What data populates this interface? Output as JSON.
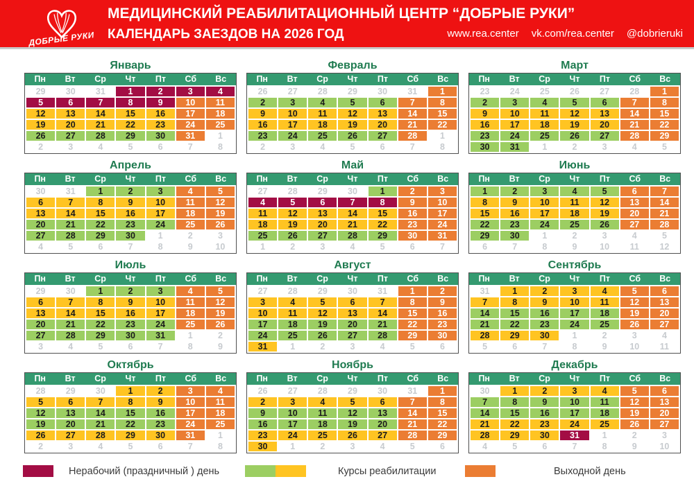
{
  "header": {
    "logo_text": "ДОБРЫЕ РУКИ",
    "title_line1": "МЕДИЦИНСКИЙ РЕАБИЛИТАЦИОННЫЙ ЦЕНТР “ДОБРЫЕ РУКИ”",
    "title_line2": "КАЛЕНДАРЬ ЗАЕЗДОВ НА 2026 ГОД",
    "links": [
      "www.rea.center",
      "vk.com/rea.center",
      "@dobrieruki"
    ]
  },
  "weekdays": [
    "Пн",
    "Вт",
    "Ср",
    "Чт",
    "Пт",
    "Сб",
    "Вс"
  ],
  "colors": {
    "banner_red": "#EE1212",
    "header_green": "#349A70",
    "title_green": "#1F7B50",
    "course_green": "#9CCE62",
    "course_yellow": "#FFC422",
    "weekend_orange": "#EB7D33",
    "holiday_red": "#A30D44",
    "out_text": "#C7CBCF"
  },
  "cell_types": {
    "x": "adjacent-month-day",
    "g": "rehab-course-green",
    "y": "rehab-course-yellow",
    "o": "weekend-day",
    "h": "holiday-nonworking-day"
  },
  "months": [
    {
      "id": "january",
      "name": "Январь",
      "weeks": [
        [
          "29:x",
          "30:x",
          "31:x",
          "1:h",
          "2:h",
          "3:h",
          "4:h"
        ],
        [
          "5:h",
          "6:h",
          "7:h",
          "8:h",
          "9:h",
          "10:o",
          "11:o"
        ],
        [
          "12:y",
          "13:y",
          "14:y",
          "15:y",
          "16:y",
          "17:o",
          "18:o"
        ],
        [
          "19:y",
          "20:y",
          "21:y",
          "22:y",
          "23:y",
          "24:o",
          "25:o"
        ],
        [
          "26:g",
          "27:g",
          "28:g",
          "29:g",
          "30:g",
          "31:o",
          "1:x"
        ],
        [
          "2:x",
          "3:x",
          "4:x",
          "5:x",
          "6:x",
          "7:x",
          "8:x"
        ]
      ]
    },
    {
      "id": "february",
      "name": "Февраль",
      "weeks": [
        [
          "26:x",
          "27:x",
          "28:x",
          "29:x",
          "30:x",
          "31:x",
          "1:o"
        ],
        [
          "2:g",
          "3:g",
          "4:g",
          "5:g",
          "6:g",
          "7:o",
          "8:o"
        ],
        [
          "9:y",
          "10:y",
          "11:y",
          "12:y",
          "13:y",
          "14:o",
          "15:o"
        ],
        [
          "16:y",
          "17:y",
          "18:y",
          "19:y",
          "20:y",
          "21:o",
          "22:o"
        ],
        [
          "23:g",
          "24:g",
          "25:g",
          "26:g",
          "27:g",
          "28:o",
          "1:x"
        ],
        [
          "2:x",
          "3:x",
          "4:x",
          "5:x",
          "6:x",
          "7:x",
          "8:x"
        ]
      ]
    },
    {
      "id": "march",
      "name": "Март",
      "weeks": [
        [
          "23:x",
          "24:x",
          "25:x",
          "26:x",
          "27:x",
          "28:x",
          "1:o"
        ],
        [
          "2:g",
          "3:g",
          "4:g",
          "5:g",
          "6:g",
          "7:o",
          "8:o"
        ],
        [
          "9:y",
          "10:y",
          "11:y",
          "12:y",
          "13:y",
          "14:o",
          "15:o"
        ],
        [
          "16:y",
          "17:y",
          "18:y",
          "19:y",
          "20:y",
          "21:o",
          "22:o"
        ],
        [
          "23:g",
          "24:g",
          "25:g",
          "26:g",
          "27:g",
          "28:o",
          "29:o"
        ],
        [
          "30:g",
          "31:g",
          "1:x",
          "2:x",
          "3:x",
          "4:x",
          "5:x"
        ]
      ]
    },
    {
      "id": "april",
      "name": "Апрель",
      "weeks": [
        [
          "30:x",
          "31:x",
          "1:g",
          "2:g",
          "3:g",
          "4:o",
          "5:o"
        ],
        [
          "6:y",
          "7:y",
          "8:y",
          "9:y",
          "10:y",
          "11:o",
          "12:o"
        ],
        [
          "13:y",
          "14:y",
          "15:y",
          "16:y",
          "17:y",
          "18:o",
          "19:o"
        ],
        [
          "20:g",
          "21:g",
          "22:g",
          "23:g",
          "24:g",
          "25:o",
          "26:o"
        ],
        [
          "27:g",
          "28:g",
          "29:g",
          "30:g",
          "1:x",
          "2:x",
          "3:x"
        ],
        [
          "4:x",
          "5:x",
          "6:x",
          "7:x",
          "8:x",
          "9:x",
          "10:x"
        ]
      ]
    },
    {
      "id": "may",
      "name": "Май",
      "weeks": [
        [
          "27:x",
          "28:x",
          "29:x",
          "30:x",
          "1:g",
          "2:o",
          "3:o"
        ],
        [
          "4:h",
          "5:h",
          "6:h",
          "7:h",
          "8:h",
          "9:o",
          "10:o"
        ],
        [
          "11:y",
          "12:y",
          "13:y",
          "14:y",
          "15:y",
          "16:o",
          "17:o"
        ],
        [
          "18:y",
          "19:y",
          "20:y",
          "21:y",
          "22:y",
          "23:o",
          "24:o"
        ],
        [
          "25:g",
          "26:g",
          "27:g",
          "28:g",
          "29:g",
          "30:o",
          "31:o"
        ],
        [
          "1:x",
          "2:x",
          "3:x",
          "4:x",
          "5:x",
          "6:x",
          "7:x"
        ]
      ]
    },
    {
      "id": "june",
      "name": "Июнь",
      "weeks": [
        [
          "1:g",
          "2:g",
          "3:g",
          "4:g",
          "5:g",
          "6:o",
          "7:o"
        ],
        [
          "8:y",
          "9:y",
          "10:y",
          "11:y",
          "12:y",
          "13:o",
          "14:o"
        ],
        [
          "15:y",
          "16:y",
          "17:y",
          "18:y",
          "19:y",
          "20:o",
          "21:o"
        ],
        [
          "22:g",
          "23:g",
          "24:g",
          "25:g",
          "26:g",
          "27:o",
          "28:o"
        ],
        [
          "29:g",
          "30:g",
          "1:x",
          "2:x",
          "3:x",
          "4:x",
          "5:x"
        ],
        [
          "6:x",
          "7:x",
          "8:x",
          "9:x",
          "10:x",
          "11:x",
          "12:x"
        ]
      ]
    },
    {
      "id": "july",
      "name": "Июль",
      "weeks": [
        [
          "29:x",
          "30:x",
          "1:g",
          "2:g",
          "3:g",
          "4:o",
          "5:o"
        ],
        [
          "6:y",
          "7:y",
          "8:y",
          "9:y",
          "10:y",
          "11:o",
          "12:o"
        ],
        [
          "13:y",
          "14:y",
          "15:y",
          "16:y",
          "17:y",
          "18:o",
          "19:o"
        ],
        [
          "20:g",
          "21:g",
          "22:g",
          "23:g",
          "24:g",
          "25:o",
          "26:o"
        ],
        [
          "27:g",
          "28:g",
          "29:g",
          "30:g",
          "31:g",
          "1:x",
          "2:x"
        ],
        [
          "3:x",
          "4:x",
          "5:x",
          "6:x",
          "7:x",
          "8:x",
          "9:x"
        ]
      ]
    },
    {
      "id": "august",
      "name": "Август",
      "weeks": [
        [
          "27:x",
          "28:x",
          "29:x",
          "30:x",
          "31:x",
          "1:o",
          "2:o"
        ],
        [
          "3:y",
          "4:y",
          "5:y",
          "6:y",
          "7:y",
          "8:o",
          "9:o"
        ],
        [
          "10:y",
          "11:y",
          "12:y",
          "13:y",
          "14:y",
          "15:o",
          "16:o"
        ],
        [
          "17:g",
          "18:g",
          "19:g",
          "20:g",
          "21:g",
          "22:o",
          "23:o"
        ],
        [
          "24:g",
          "25:g",
          "26:g",
          "27:g",
          "28:g",
          "29:o",
          "30:o"
        ],
        [
          "31:y",
          "1:x",
          "2:x",
          "3:x",
          "4:x",
          "5:x",
          "6:x"
        ]
      ]
    },
    {
      "id": "september",
      "name": "Сентябрь",
      "weeks": [
        [
          "31:x",
          "1:y",
          "2:y",
          "3:y",
          "4:y",
          "5:o",
          "6:o"
        ],
        [
          "7:y",
          "8:y",
          "9:y",
          "10:y",
          "11:y",
          "12:o",
          "13:o"
        ],
        [
          "14:g",
          "15:g",
          "16:g",
          "17:g",
          "18:g",
          "19:o",
          "20:o"
        ],
        [
          "21:g",
          "22:g",
          "23:g",
          "24:g",
          "25:g",
          "26:o",
          "27:o"
        ],
        [
          "28:y",
          "29:y",
          "30:y",
          "1:x",
          "2:x",
          "3:x",
          "4:x"
        ],
        [
          "5:x",
          "6:x",
          "7:x",
          "8:x",
          "9:x",
          "10:x",
          "11:x"
        ]
      ]
    },
    {
      "id": "october",
      "name": "Октябрь",
      "weeks": [
        [
          "28:x",
          "29:x",
          "30:x",
          "1:y",
          "2:y",
          "3:o",
          "4:o"
        ],
        [
          "5:y",
          "6:y",
          "7:y",
          "8:y",
          "9:y",
          "10:o",
          "11:o"
        ],
        [
          "12:g",
          "13:g",
          "14:g",
          "15:g",
          "16:g",
          "17:o",
          "18:o"
        ],
        [
          "19:g",
          "20:g",
          "21:g",
          "22:g",
          "23:g",
          "24:o",
          "25:o"
        ],
        [
          "26:y",
          "27:y",
          "28:y",
          "29:y",
          "30:y",
          "31:o",
          "1:x"
        ],
        [
          "2:x",
          "3:x",
          "4:x",
          "5:x",
          "6:x",
          "7:x",
          "8:x"
        ]
      ]
    },
    {
      "id": "november",
      "name": "Ноябрь",
      "weeks": [
        [
          "26:x",
          "27:x",
          "28:x",
          "29:x",
          "30:x",
          "31:x",
          "1:o"
        ],
        [
          "2:y",
          "3:y",
          "4:y",
          "5:y",
          "6:y",
          "7:o",
          "8:o"
        ],
        [
          "9:g",
          "10:g",
          "11:g",
          "12:g",
          "13:g",
          "14:o",
          "15:o"
        ],
        [
          "16:g",
          "17:g",
          "18:g",
          "19:g",
          "20:g",
          "21:o",
          "22:o"
        ],
        [
          "23:y",
          "24:y",
          "25:y",
          "26:y",
          "27:y",
          "28:o",
          "29:o"
        ],
        [
          "30:y",
          "1:x",
          "2:x",
          "3:x",
          "4:x",
          "5:x",
          "6:x"
        ]
      ]
    },
    {
      "id": "december",
      "name": "Декабрь",
      "weeks": [
        [
          "30:x",
          "1:y",
          "2:y",
          "3:y",
          "4:y",
          "5:o",
          "6:o"
        ],
        [
          "7:g",
          "8:g",
          "9:g",
          "10:g",
          "11:g",
          "12:o",
          "13:o"
        ],
        [
          "14:g",
          "15:g",
          "16:g",
          "17:g",
          "18:g",
          "19:o",
          "20:o"
        ],
        [
          "21:y",
          "22:y",
          "23:y",
          "24:y",
          "25:y",
          "26:o",
          "27:o"
        ],
        [
          "28:y",
          "29:y",
          "30:y",
          "31:h",
          "1:x",
          "2:x",
          "3:x"
        ],
        [
          "4:x",
          "5:x",
          "6:x",
          "7:x",
          "8:x",
          "9:x",
          "10:x"
        ]
      ]
    }
  ],
  "legend": [
    {
      "id": "holiday",
      "label": "Нерабочий (праздничный ) день",
      "colors": [
        "#A30D44"
      ]
    },
    {
      "id": "courses",
      "label": "Курсы реабилитации",
      "colors": [
        "#9CCE62",
        "#FFC422"
      ]
    },
    {
      "id": "weekend",
      "label": "Выходной день",
      "colors": [
        "#EB7D33"
      ]
    }
  ]
}
